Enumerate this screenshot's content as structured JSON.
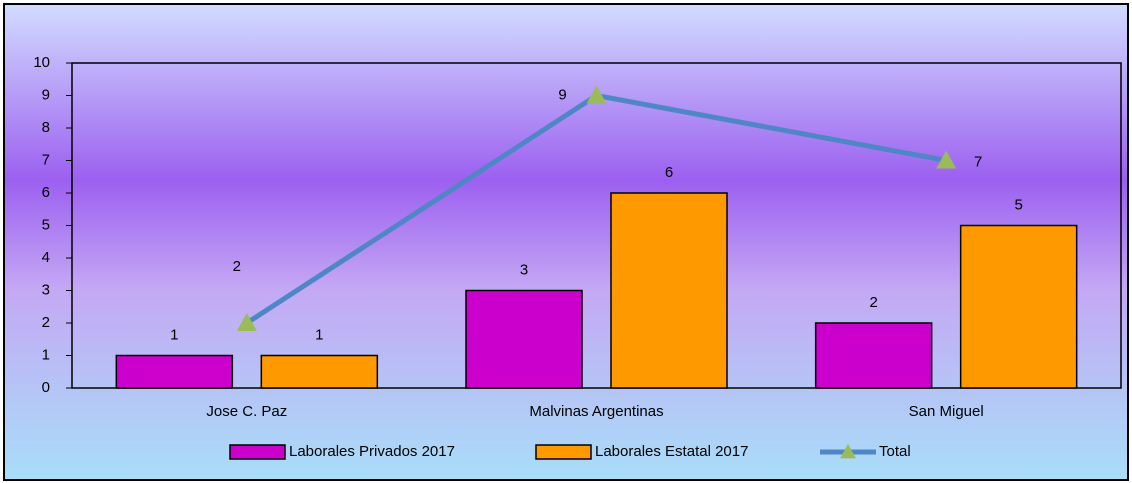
{
  "chart_data": {
    "type": "bar",
    "categories": [
      "Jose C. Paz",
      "Malvinas Argentinas",
      "San Miguel"
    ],
    "series": [
      {
        "name": "Laborales Privados 2017",
        "color": "#cc00cc",
        "values": [
          1,
          3,
          2
        ]
      },
      {
        "name": "Laborales Estatal 2017",
        "color": "#ff9900",
        "values": [
          1,
          6,
          5
        ]
      },
      {
        "name": "Total",
        "type": "line",
        "color": "#4f86c6",
        "marker_color": "#9bbb59",
        "values": [
          2,
          9,
          7
        ]
      }
    ],
    "ylim": [
      0,
      10
    ],
    "yticks": [
      0,
      1,
      2,
      3,
      4,
      5,
      6,
      7,
      8,
      9,
      10
    ],
    "grid": false,
    "legend": "bottom"
  }
}
